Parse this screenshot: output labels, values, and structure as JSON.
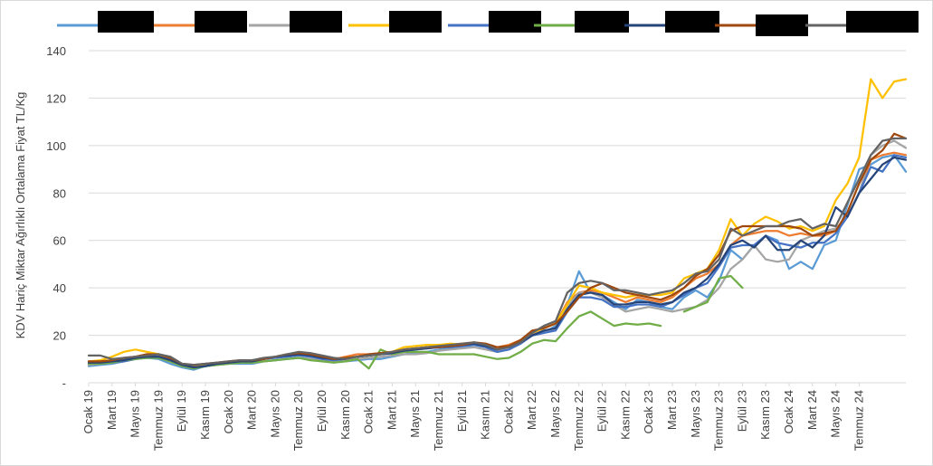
{
  "chart_data": {
    "type": "line",
    "ylabel": "KDV Hariç Miktar Ağırlıklı Ortalama Fiyat TL/Kg",
    "ylim": [
      0,
      140
    ],
    "y_ticks": [
      "-",
      "20",
      "40",
      "60",
      "80",
      "100",
      "120",
      "140"
    ],
    "x_ticks": [
      "Ocak 19",
      "Mart 19",
      "Mayıs 19",
      "Temmuz 19",
      "Eylül 19",
      "Kasım 19",
      "Ocak 20",
      "Mart 20",
      "Mayıs 20",
      "Temmuz 20",
      "Eylül 20",
      "Kasım 20",
      "Ocak 21",
      "Mart 21",
      "Mayıs 21",
      "Temmuz 21",
      "Eylül 21",
      "Kasım 21",
      "Ocak 22",
      "Mart 22",
      "Mayıs 22",
      "Temmuz 22",
      "Eylül 22",
      "Kasım 22",
      "Ocak 23",
      "Mart 23",
      "Mayıs 23",
      "Temmuz 23",
      "Eylül 23",
      "Kasım 23",
      "Ocak 24",
      "Mart 24",
      "Mayıs 24",
      "Temmuz 24"
    ],
    "grid": true,
    "legend": "top",
    "series": [
      {
        "color": "#5b9bd5",
        "values": [
          7,
          7.5,
          8,
          9,
          10,
          10.5,
          10,
          8,
          6.5,
          5.5,
          7,
          7.5,
          8,
          8,
          8,
          9,
          9.5,
          10,
          10.5,
          10,
          9.5,
          9,
          9,
          9.5,
          10,
          10,
          11,
          12,
          12.5,
          13,
          14,
          14.5,
          15,
          16,
          15,
          14,
          15,
          17,
          20,
          21,
          24,
          33,
          47,
          38,
          37,
          34,
          31,
          35,
          34,
          32,
          31,
          36,
          39,
          36,
          43,
          56,
          52,
          58,
          62,
          60,
          48,
          51,
          48,
          58,
          60,
          75,
          90,
          92,
          95,
          96,
          89
        ]
      },
      {
        "color": "#ed7d31",
        "values": [
          8,
          8.5,
          9,
          10,
          11,
          12,
          12,
          10,
          8,
          7,
          7.5,
          8,
          8.5,
          9,
          9,
          10,
          11,
          11.5,
          12,
          11,
          10.5,
          10,
          11,
          12,
          12,
          12.5,
          13,
          14,
          14.5,
          15,
          16,
          16,
          16.5,
          17,
          16,
          15,
          16,
          18,
          21,
          23,
          25,
          34,
          38,
          39,
          38,
          36,
          34,
          36,
          35,
          34,
          36,
          40,
          44,
          46,
          50,
          58,
          62,
          63,
          64,
          64,
          62,
          63,
          62,
          62,
          64,
          70,
          80,
          94,
          96,
          97,
          96
        ]
      },
      {
        "color": "#a5a5a5",
        "values": [
          7.5,
          8,
          8.5,
          9,
          10,
          10.5,
          10.5,
          9,
          7.5,
          6.5,
          7,
          7.5,
          8,
          8.5,
          8.5,
          9,
          9.5,
          10,
          10.5,
          10,
          9.5,
          9,
          9,
          10,
          10.5,
          11,
          11.5,
          12,
          12,
          12.5,
          13.5,
          14,
          14.5,
          15,
          14,
          13,
          14,
          16.5,
          20,
          21,
          23,
          32,
          38,
          38,
          36,
          33,
          30,
          31,
          32,
          31,
          30,
          31,
          32,
          35,
          40,
          48,
          52,
          58,
          52,
          51,
          52,
          60,
          62,
          64,
          65,
          70,
          80,
          96,
          100,
          102,
          99
        ]
      },
      {
        "color": "#ffc000",
        "values": [
          9,
          9.5,
          11,
          13,
          14,
          13,
          12,
          9,
          7,
          6.5,
          7.5,
          8,
          9,
          9.5,
          9.5,
          10,
          11,
          12,
          12.5,
          12,
          11,
          10,
          10.5,
          11,
          11.5,
          12,
          13,
          15,
          15.5,
          16,
          16,
          16.5,
          16,
          17,
          16,
          14,
          15,
          18,
          21,
          23,
          25,
          33,
          41,
          40,
          38,
          37,
          36,
          37,
          37,
          37,
          38,
          44,
          46,
          48,
          56,
          69,
          62,
          67,
          70,
          68,
          65,
          66,
          64,
          66,
          77,
          84,
          95,
          128,
          120,
          127,
          128
        ]
      },
      {
        "color": "#4472c4",
        "values": [
          8,
          8,
          8.5,
          9,
          10,
          11,
          11,
          9.5,
          7.5,
          6,
          7,
          8,
          8.5,
          9,
          9,
          10,
          10.5,
          11,
          11.5,
          11,
          10,
          9.5,
          10,
          11,
          11.5,
          12,
          12.5,
          13,
          14,
          14.5,
          15,
          15,
          15.5,
          16,
          15,
          13,
          14,
          16.5,
          20,
          21,
          22,
          30,
          36,
          36,
          35,
          32,
          32,
          33,
          33,
          32,
          34,
          37,
          40,
          42,
          49,
          57,
          58,
          58,
          62,
          59,
          58,
          57,
          59,
          59,
          63,
          70,
          80,
          91,
          89,
          96,
          95
        ]
      },
      {
        "color": "#70ad47",
        "values": [
          8,
          8,
          8.5,
          9.5,
          10,
          10.5,
          10.5,
          9,
          7,
          6,
          7,
          7.5,
          8,
          8.5,
          8.5,
          9,
          9.5,
          10,
          10.5,
          9.5,
          9,
          8.5,
          9,
          10,
          6,
          14,
          12,
          13,
          13,
          13,
          12,
          12,
          12,
          12,
          11,
          10,
          10.5,
          13,
          16.5,
          18,
          17.5,
          23,
          28,
          30,
          27,
          24,
          25,
          24.5,
          25,
          24,
          null,
          30,
          32,
          34,
          44,
          45,
          40,
          null,
          null,
          null,
          null,
          null,
          null,
          null,
          null,
          null,
          null,
          null,
          null,
          null,
          null
        ]
      },
      {
        "color": "#264478",
        "values": [
          8.5,
          8.5,
          9,
          9.5,
          10.5,
          11,
          11,
          9.5,
          7.5,
          6.5,
          7,
          8,
          8.5,
          9,
          9,
          10,
          11,
          11.5,
          12,
          11.5,
          10.5,
          10,
          10,
          11,
          11.5,
          12,
          12.5,
          13.5,
          14,
          14.5,
          15,
          15.5,
          16,
          16.5,
          15.5,
          14,
          15,
          17,
          20,
          22,
          23,
          31,
          37,
          38,
          37,
          33,
          33,
          34,
          34,
          33,
          34,
          38,
          40,
          44,
          50,
          58,
          60,
          57,
          62,
          56,
          56,
          60,
          57,
          62,
          74,
          70,
          80,
          86,
          92,
          95,
          94
        ]
      },
      {
        "color": "#9e480e",
        "values": [
          9,
          9,
          9.5,
          10.5,
          11,
          12,
          12,
          10.5,
          8,
          7.5,
          8,
          8.5,
          9,
          9.5,
          9.5,
          10,
          11,
          12,
          12.5,
          12,
          11,
          10,
          10.5,
          11,
          12,
          12.5,
          13,
          14,
          14.5,
          15,
          15,
          15.5,
          16,
          17,
          16.5,
          15,
          15.5,
          18,
          22,
          23,
          25,
          30,
          36,
          40,
          42,
          40,
          38,
          37,
          36,
          35,
          37,
          40,
          45,
          48,
          54,
          64,
          66,
          66,
          66,
          66,
          66,
          65,
          62,
          63,
          64,
          72,
          84,
          94,
          98,
          105,
          103
        ]
      },
      {
        "color": "#636363",
        "values": [
          11.5,
          11.5,
          10,
          10.5,
          11,
          11.5,
          12,
          11,
          8,
          7.5,
          8,
          8.5,
          9,
          9.5,
          9.5,
          10.5,
          11,
          12,
          13,
          12.5,
          11.5,
          10.5,
          10,
          11,
          11.5,
          12,
          13,
          14,
          14.5,
          15,
          15.5,
          16,
          16.5,
          17,
          16,
          14,
          15,
          17,
          21,
          24,
          26,
          38,
          42,
          43,
          42,
          39,
          39,
          38,
          37,
          38,
          39,
          42,
          46,
          47,
          52,
          65,
          62,
          64,
          66,
          66,
          68,
          69,
          65,
          67,
          66,
          76,
          86,
          96,
          102,
          103,
          103
        ]
      }
    ]
  }
}
